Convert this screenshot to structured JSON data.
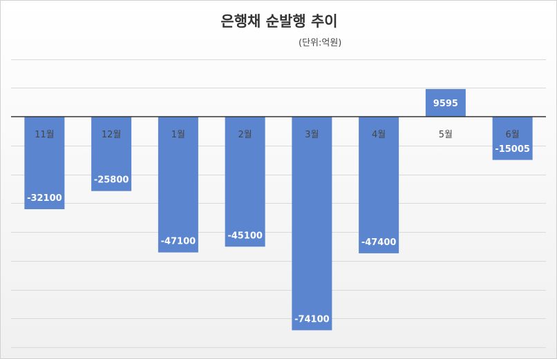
{
  "chart_data": {
    "type": "bar",
    "title": "은행채 순발행 추이",
    "unit": "(단위:억원)",
    "categories": [
      "11월",
      "12월",
      "1월",
      "2월",
      "3월",
      "4월",
      "5월",
      "6월"
    ],
    "values": [
      -32100,
      -25800,
      -47100,
      -45100,
      -74100,
      -47400,
      9595,
      -15005
    ],
    "ylim": [
      -80000,
      20000
    ],
    "grid": true,
    "legend": "none",
    "colors": {
      "bar": "#5b86cf",
      "grid": "#d9d9d9",
      "axis": "#333333",
      "label_light": "#ffffff",
      "label_dark": "#333333"
    }
  }
}
